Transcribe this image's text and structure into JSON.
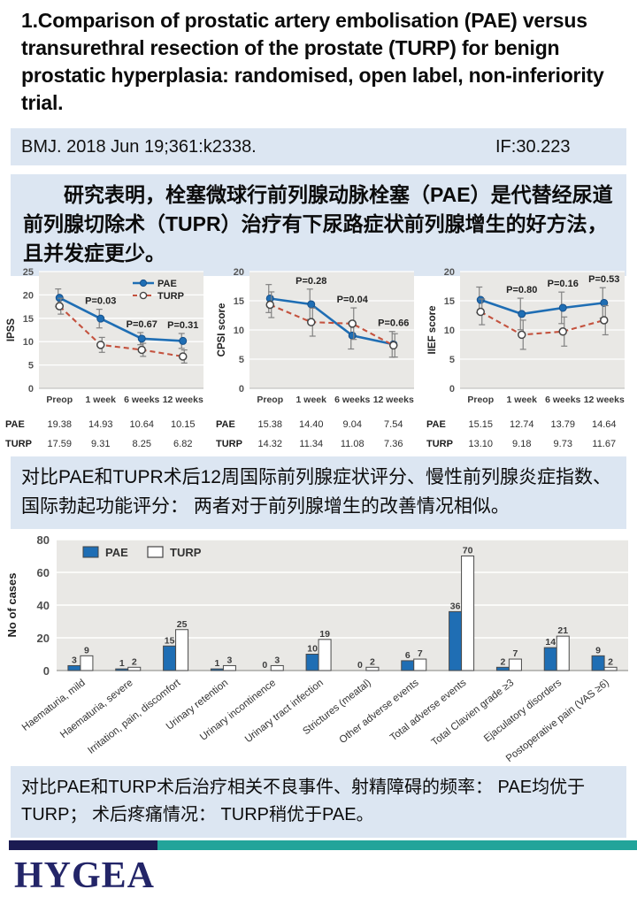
{
  "slide": {
    "title": "1.Comparison of prostatic artery embolisation (PAE) versus transurethral resection of the prostate (TURP) for benign prostatic hyperplasia: randomised, open label, non-inferiority trial.",
    "citation": {
      "journal": "BMJ. 2018 Jun 19;361:k2338.",
      "impact_factor": "IF:30.223"
    },
    "summary1": "研究表明，栓塞微球行前列腺动脉栓塞（PAE）是代替经尿道前列腺切除术（TUPR）治疗有下尿路症状前列腺增生的好方法，且并发症更少。",
    "summary2": "对比PAE和TUPR术后12周国际前列腺症状评分、慢性前列腺炎症指数、国际勃起功能评分： 两者对于前列腺增生的改善情况相似。",
    "summary3": "对比PAE和TURP术后治疗相关不良事件、射精障碍的频率： PAE均优于TURP； 术后疼痛情况： TURP稍优于PAE。",
    "logo_text": "HYGEA"
  },
  "colors": {
    "panel_blue": "#dce6f2",
    "chart_bg": "#e9e8e5",
    "pae_blue": "#1f6eb4",
    "pae_blue_dark": "#17508a",
    "turp_red": "#c4523e",
    "error_bar": "#828282",
    "navy": "#1b1b52",
    "teal": "#22a49a",
    "logo_navy": "#232568"
  },
  "chart_data": [
    {
      "type": "line",
      "id": "ipss",
      "ylabel": "IPSS",
      "ylim": [
        0,
        25
      ],
      "yticks": [
        0,
        5,
        10,
        15,
        20,
        25
      ],
      "categories": [
        "Preop",
        "1 week",
        "6 weeks",
        "12 weeks"
      ],
      "legend": true,
      "legend_position": "top-right-inside",
      "grid": true,
      "series": [
        {
          "name": "PAE",
          "values": [
            19.38,
            14.93,
            10.64,
            10.15
          ],
          "errors": [
            1.9,
            2.0,
            1.3,
            1.6
          ]
        },
        {
          "name": "TURP",
          "values": [
            17.59,
            9.31,
            8.25,
            6.82
          ],
          "errors": [
            1.7,
            1.6,
            1.4,
            1.4
          ]
        }
      ],
      "p_values": [
        "",
        "P=0.03",
        "P=0.67",
        "P=0.31"
      ]
    },
    {
      "type": "line",
      "id": "cpsi",
      "ylabel": "CPSI score",
      "ylim": [
        0,
        20
      ],
      "yticks": [
        0,
        5,
        10,
        15,
        20
      ],
      "categories": [
        "Preop",
        "1 week",
        "6 weeks",
        "12 weeks"
      ],
      "legend": false,
      "grid": true,
      "series": [
        {
          "name": "PAE",
          "values": [
            15.38,
            14.4,
            9.04,
            7.54
          ],
          "errors": [
            2.4,
            2.6,
            2.3,
            2.2
          ]
        },
        {
          "name": "TURP",
          "values": [
            14.32,
            11.34,
            11.08,
            7.36
          ],
          "errors": [
            2.2,
            2.4,
            2.7,
            2.0
          ]
        }
      ],
      "p_values": [
        "",
        "P=0.28",
        "P=0.04",
        "P=0.66"
      ]
    },
    {
      "type": "line",
      "id": "iief",
      "ylabel": "IIEF score",
      "ylim": [
        0,
        20
      ],
      "yticks": [
        0,
        5,
        10,
        15,
        20
      ],
      "categories": [
        "Preop",
        "1 week",
        "6 weeks",
        "12 weeks"
      ],
      "legend": false,
      "grid": true,
      "series": [
        {
          "name": "PAE",
          "values": [
            15.15,
            12.74,
            13.79,
            14.64
          ],
          "errors": [
            2.2,
            2.7,
            2.7,
            2.6
          ]
        },
        {
          "name": "TURP",
          "values": [
            13.1,
            9.18,
            9.73,
            11.67
          ],
          "errors": [
            2.2,
            2.5,
            2.5,
            2.5
          ]
        }
      ],
      "p_values": [
        "",
        "P=0.80",
        "P=0.16",
        "P=0.53"
      ]
    },
    {
      "type": "bar",
      "id": "adverse-events",
      "ylabel": "No of cases",
      "ylim": [
        0,
        80
      ],
      "yticks": [
        0,
        20,
        40,
        60,
        80
      ],
      "legend": true,
      "legend_position": "top-left-inside",
      "grid": true,
      "categories": [
        "Haematuria, mild",
        "Haematuria, severe",
        "Irritation, pain, discomfort",
        "Urinary retention",
        "Urinary incontinence",
        "Urinary tract infection",
        "Strictures (meatal)",
        "Other adverse events",
        "Total adverse events",
        "Total Clavien grade ≥3",
        "Ejaculatory disorders",
        "Postoperative pain (VAS ≥6)"
      ],
      "series": [
        {
          "name": "PAE",
          "values": [
            3,
            1,
            15,
            1,
            0,
            10,
            0,
            6,
            36,
            2,
            14,
            9
          ]
        },
        {
          "name": "TURP",
          "values": [
            9,
            2,
            25,
            3,
            3,
            19,
            2,
            7,
            70,
            7,
            21,
            2
          ]
        }
      ]
    }
  ]
}
